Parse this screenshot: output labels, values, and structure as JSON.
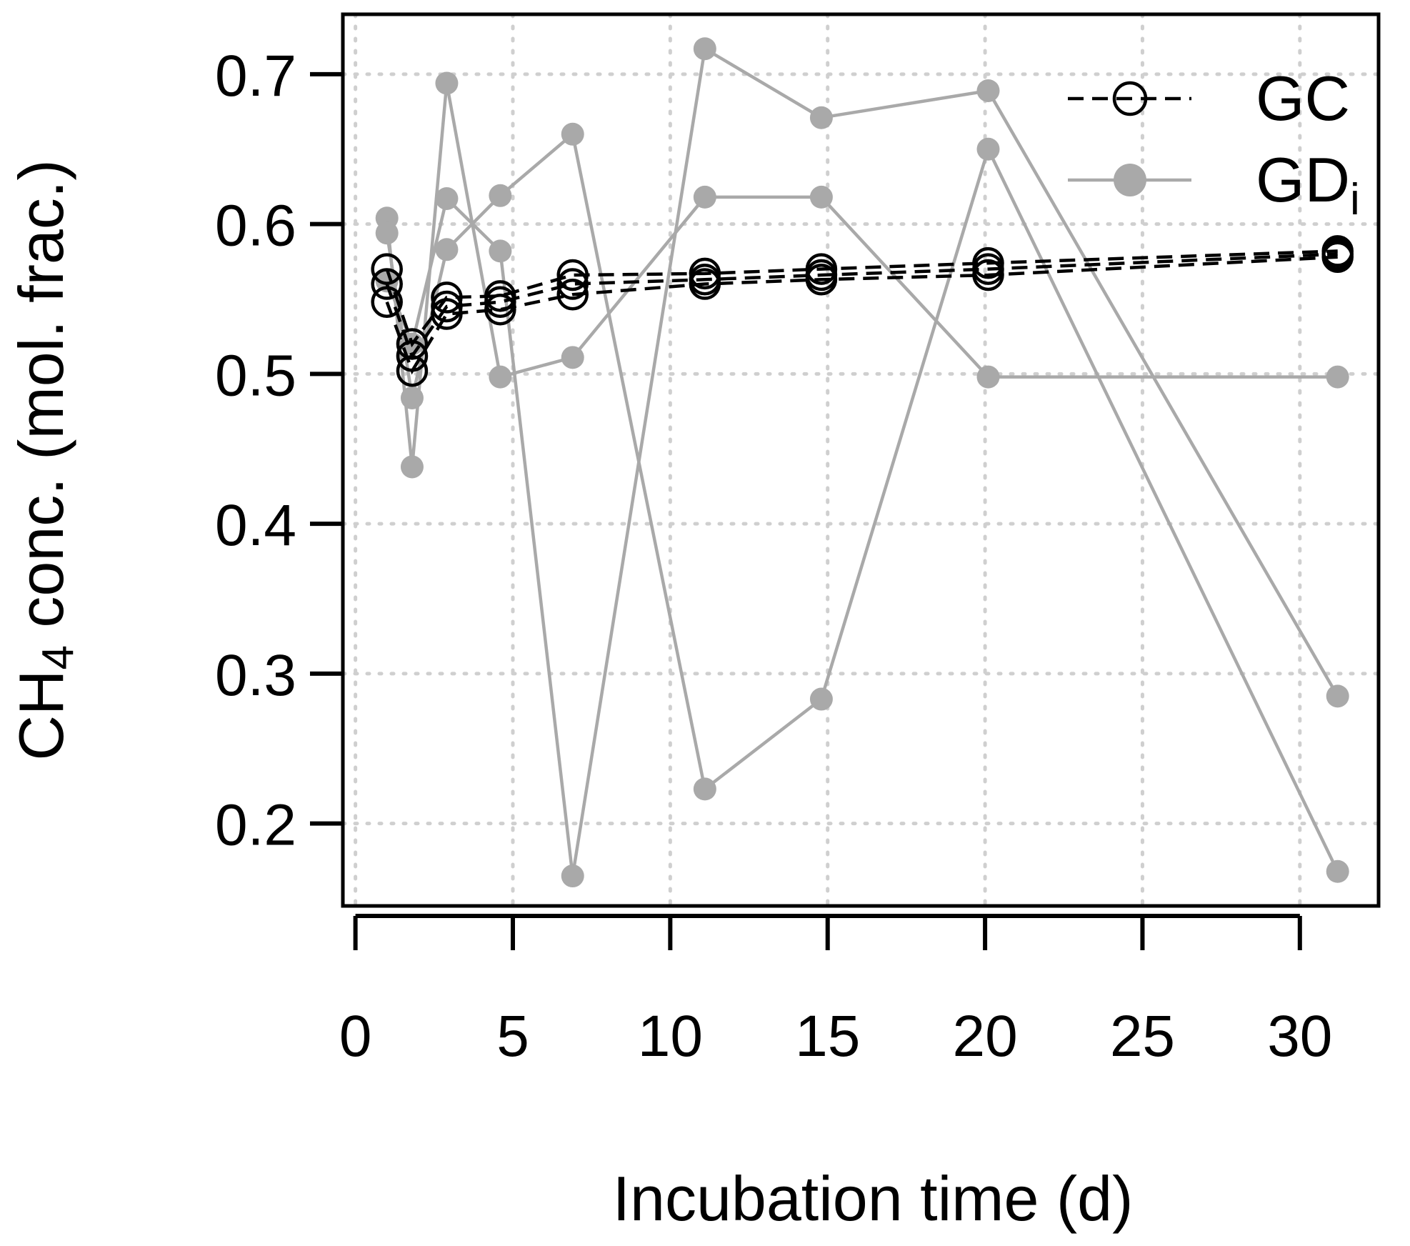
{
  "chart_data": {
    "type": "line",
    "title": "",
    "xlabel": "Incubation time (d)",
    "ylabel": {
      "prefix": "CH",
      "subscript": "4",
      "suffix": " conc. (mol. frac.)"
    },
    "xlim": [
      -0.4,
      32.5
    ],
    "ylim": [
      0.145,
      0.74
    ],
    "x_ticks": [
      0,
      5,
      10,
      15,
      20,
      25,
      30
    ],
    "y_ticks": [
      0.2,
      0.3,
      0.4,
      0.5,
      0.6,
      0.7
    ],
    "y_tick_labels": [
      "0.2",
      "0.3",
      "0.4",
      "0.5",
      "0.6",
      "0.7"
    ],
    "grid": true,
    "legend": {
      "position": "top-right",
      "entries": [
        {
          "label": "GC",
          "subscript": "",
          "style": "dashed-open-circle"
        },
        {
          "label": "GD",
          "subscript": "i",
          "style": "solid-filled-circle"
        }
      ]
    },
    "colors": {
      "gc": "#000000",
      "gd": "#a9a9a9"
    },
    "series": [
      {
        "name": "GC",
        "group": "gc",
        "x": [
          1.0,
          1.8,
          2.9,
          4.6,
          6.9,
          11.1,
          14.8,
          20.1,
          31.2
        ],
        "y": [
          0.57,
          0.52,
          0.551,
          0.552,
          0.566,
          0.567,
          0.57,
          0.574,
          0.582
        ]
      },
      {
        "name": "GC",
        "group": "gc",
        "x": [
          1.0,
          1.8,
          2.9,
          4.6,
          6.9,
          11.1,
          14.8,
          20.1,
          31.2
        ],
        "y": [
          0.56,
          0.512,
          0.545,
          0.548,
          0.56,
          0.563,
          0.566,
          0.57,
          0.58
        ]
      },
      {
        "name": "GC",
        "group": "gc",
        "x": [
          1.0,
          1.8,
          2.9,
          4.6,
          6.9,
          11.1,
          14.8,
          20.1,
          31.2
        ],
        "y": [
          0.548,
          0.502,
          0.54,
          0.543,
          0.553,
          0.56,
          0.563,
          0.566,
          0.578
        ]
      },
      {
        "name": "GD_i",
        "group": "gd",
        "x": [
          1.0,
          1.8,
          2.9,
          4.6,
          6.9,
          11.1,
          14.8,
          20.1,
          31.2
        ],
        "y": [
          0.604,
          0.438,
          0.694,
          0.498,
          0.511,
          0.618,
          0.618,
          0.498,
          0.498
        ]
      },
      {
        "name": "GD_i",
        "group": "gd",
        "x": [
          1.0,
          1.8,
          2.9,
          4.6,
          6.9,
          11.1,
          14.8,
          20.1,
          31.2
        ],
        "y": [
          0.594,
          0.484,
          0.583,
          0.619,
          0.66,
          0.223,
          0.283,
          0.65,
          0.168
        ]
      },
      {
        "name": "GD_i",
        "group": "gd",
        "x": [
          1.0,
          1.8,
          2.9,
          4.6,
          6.9,
          11.1,
          14.8,
          20.1,
          31.2
        ],
        "y": [
          0.562,
          0.52,
          0.617,
          0.582,
          0.165,
          0.717,
          0.671,
          0.689,
          0.285
        ]
      }
    ]
  }
}
